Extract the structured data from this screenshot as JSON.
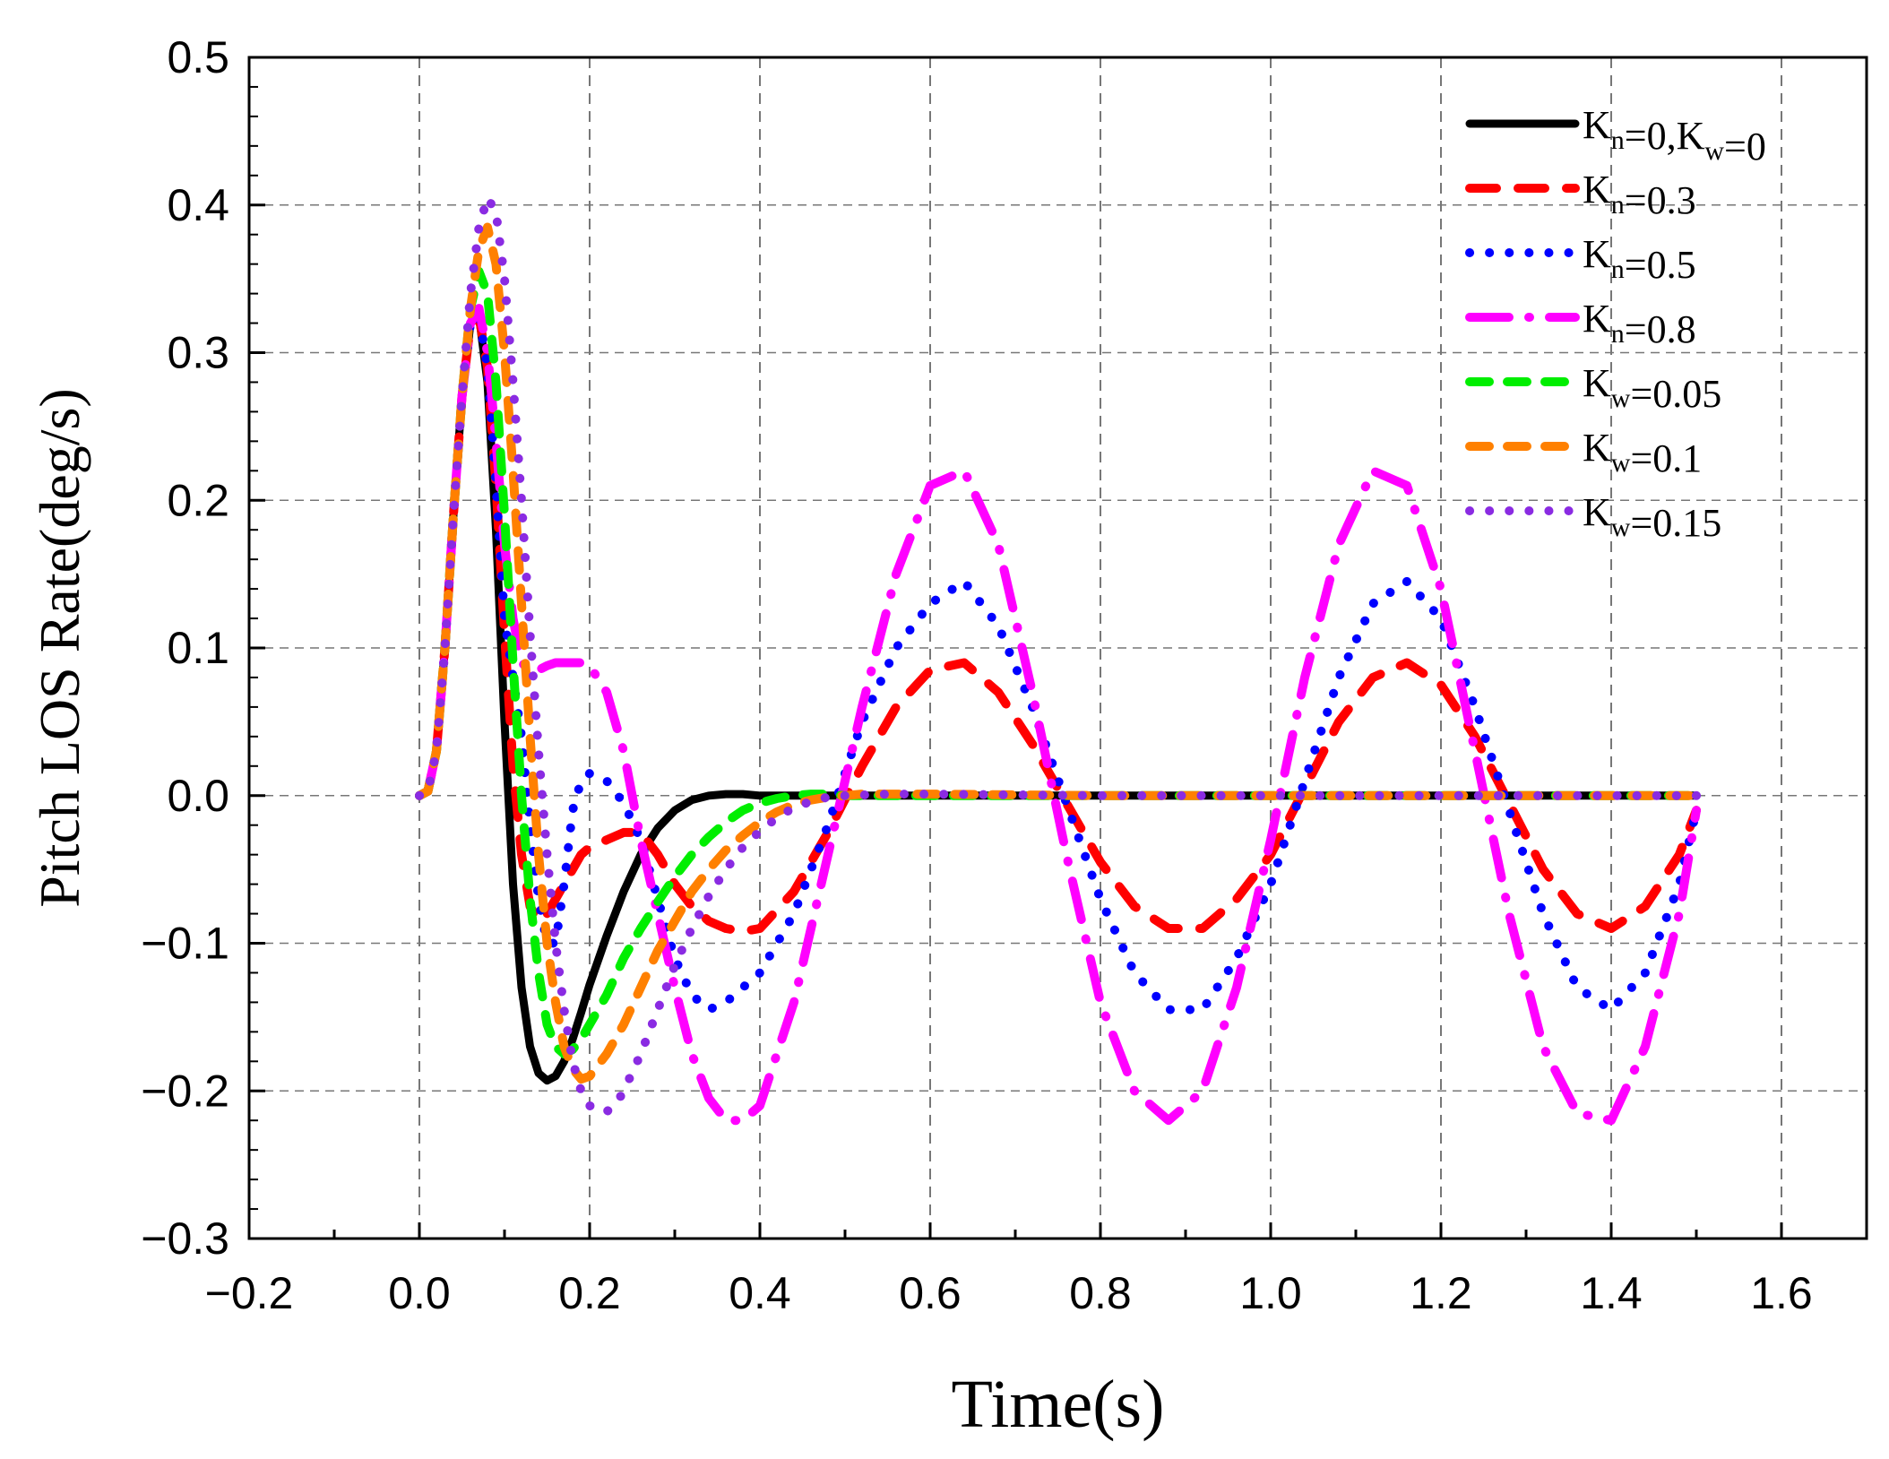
{
  "chart_data": {
    "type": "line",
    "title": "",
    "xlabel": "Time(s)",
    "ylabel": "Pitch LOS Rate(deg/s)",
    "xlim": [
      -0.2,
      1.7
    ],
    "ylim": [
      -0.3,
      0.5
    ],
    "grid": true,
    "legend_position": "top-right",
    "x_ticks": [
      -0.2,
      0.0,
      0.2,
      0.4,
      0.6,
      0.8,
      1.0,
      1.2,
      1.4,
      1.6
    ],
    "x_tick_labels": [
      "−0.2",
      "0.0",
      "0.2",
      "0.4",
      "0.6",
      "0.8",
      "1.0",
      "1.2",
      "1.4",
      "1.6"
    ],
    "y_ticks": [
      -0.3,
      -0.2,
      -0.1,
      0.0,
      0.1,
      0.2,
      0.3,
      0.4,
      0.5
    ],
    "y_tick_labels": [
      "−0.3",
      "−0.2",
      "−0.1",
      "0.0",
      "0.1",
      "0.2",
      "0.3",
      "0.4",
      "0.5"
    ],
    "series": [
      {
        "name": "Kn=0,Kw=0",
        "legend": [
          {
            "t": "K",
            "s": "n"
          },
          {
            "t": "=0,K",
            "s": "w"
          },
          {
            "t": "=0",
            "s": ""
          }
        ],
        "color": "#000000",
        "style": "solid",
        "x": [
          0,
          0.01,
          0.02,
          0.03,
          0.04,
          0.05,
          0.06,
          0.07,
          0.08,
          0.09,
          0.1,
          0.11,
          0.12,
          0.13,
          0.14,
          0.15,
          0.16,
          0.17,
          0.18,
          0.19,
          0.2,
          0.22,
          0.24,
          0.26,
          0.28,
          0.3,
          0.32,
          0.34,
          0.36,
          0.38,
          0.4,
          0.45,
          0.5,
          0.6,
          0.8,
          1.0,
          1.2,
          1.4,
          1.5
        ],
        "y": [
          0,
          0.003,
          0.03,
          0.1,
          0.19,
          0.27,
          0.32,
          0.325,
          0.28,
          0.18,
          0.05,
          -0.06,
          -0.13,
          -0.17,
          -0.188,
          -0.193,
          -0.19,
          -0.18,
          -0.165,
          -0.147,
          -0.128,
          -0.095,
          -0.065,
          -0.04,
          -0.022,
          -0.01,
          -0.003,
          0.0,
          0.001,
          0.001,
          0.0,
          0,
          0,
          0,
          0,
          0,
          0,
          0,
          0
        ]
      },
      {
        "name": "Kn=0.3",
        "legend": [
          {
            "t": "K",
            "s": "n"
          },
          {
            "t": "=0.3",
            "s": ""
          }
        ],
        "color": "#ff0000",
        "style": "dash",
        "x": [
          0,
          0.01,
          0.02,
          0.03,
          0.04,
          0.05,
          0.06,
          0.07,
          0.08,
          0.09,
          0.1,
          0.11,
          0.12,
          0.13,
          0.14,
          0.15,
          0.16,
          0.17,
          0.18,
          0.19,
          0.2,
          0.22,
          0.24,
          0.26,
          0.28,
          0.3,
          0.32,
          0.34,
          0.36,
          0.38,
          0.4,
          0.44,
          0.48,
          0.52,
          0.56,
          0.6,
          0.64,
          0.68,
          0.72,
          0.76,
          0.8,
          0.84,
          0.88,
          0.92,
          0.96,
          1.0,
          1.04,
          1.08,
          1.12,
          1.16,
          1.2,
          1.24,
          1.28,
          1.32,
          1.36,
          1.4,
          1.44,
          1.48,
          1.5
        ],
        "y": [
          0,
          0.003,
          0.03,
          0.1,
          0.19,
          0.27,
          0.32,
          0.325,
          0.29,
          0.21,
          0.11,
          0.02,
          -0.04,
          -0.075,
          -0.085,
          -0.08,
          -0.07,
          -0.06,
          -0.05,
          -0.04,
          -0.035,
          -0.03,
          -0.025,
          -0.025,
          -0.04,
          -0.06,
          -0.075,
          -0.085,
          -0.09,
          -0.092,
          -0.09,
          -0.065,
          -0.025,
          0.02,
          0.06,
          0.085,
          0.09,
          0.07,
          0.035,
          -0.005,
          -0.045,
          -0.075,
          -0.09,
          -0.09,
          -0.07,
          -0.04,
          0.005,
          0.05,
          0.08,
          0.09,
          0.075,
          0.04,
          -0.005,
          -0.05,
          -0.08,
          -0.09,
          -0.075,
          -0.04,
          -0.01
        ]
      },
      {
        "name": "Kn=0.5",
        "legend": [
          {
            "t": "K",
            "s": "n"
          },
          {
            "t": "=0.5",
            "s": ""
          }
        ],
        "color": "#0000ff",
        "style": "dot",
        "x": [
          0,
          0.01,
          0.02,
          0.03,
          0.04,
          0.05,
          0.06,
          0.07,
          0.08,
          0.09,
          0.1,
          0.11,
          0.12,
          0.13,
          0.14,
          0.15,
          0.16,
          0.17,
          0.18,
          0.19,
          0.2,
          0.22,
          0.24,
          0.26,
          0.28,
          0.3,
          0.32,
          0.34,
          0.36,
          0.38,
          0.4,
          0.44,
          0.48,
          0.52,
          0.56,
          0.6,
          0.64,
          0.68,
          0.72,
          0.76,
          0.8,
          0.84,
          0.88,
          0.92,
          0.96,
          1.0,
          1.04,
          1.08,
          1.12,
          1.16,
          1.2,
          1.24,
          1.28,
          1.32,
          1.36,
          1.4,
          1.44,
          1.48,
          1.5
        ],
        "y": [
          0,
          0.003,
          0.03,
          0.1,
          0.19,
          0.27,
          0.32,
          0.325,
          0.29,
          0.21,
          0.12,
          0.08,
          0.04,
          -0.02,
          -0.07,
          -0.1,
          -0.1,
          -0.06,
          -0.01,
          0.01,
          0.015,
          0.01,
          -0.005,
          -0.03,
          -0.07,
          -0.11,
          -0.135,
          -0.145,
          -0.14,
          -0.13,
          -0.12,
          -0.08,
          -0.02,
          0.05,
          0.1,
          0.13,
          0.145,
          0.115,
          0.06,
          -0.005,
          -0.07,
          -0.12,
          -0.145,
          -0.145,
          -0.11,
          -0.06,
          0.01,
          0.08,
          0.13,
          0.145,
          0.12,
          0.06,
          -0.01,
          -0.08,
          -0.13,
          -0.145,
          -0.12,
          -0.06,
          -0.01
        ]
      },
      {
        "name": "Kn=0.8",
        "legend": [
          {
            "t": "K",
            "s": "n"
          },
          {
            "t": "=0.8",
            "s": ""
          }
        ],
        "color": "#ff00ff",
        "style": "dashdot",
        "x": [
          0,
          0.01,
          0.02,
          0.03,
          0.04,
          0.05,
          0.06,
          0.07,
          0.08,
          0.09,
          0.1,
          0.11,
          0.12,
          0.13,
          0.14,
          0.15,
          0.16,
          0.17,
          0.18,
          0.19,
          0.2,
          0.22,
          0.24,
          0.26,
          0.28,
          0.3,
          0.32,
          0.34,
          0.36,
          0.38,
          0.4,
          0.44,
          0.48,
          0.52,
          0.56,
          0.6,
          0.64,
          0.68,
          0.72,
          0.76,
          0.8,
          0.84,
          0.88,
          0.92,
          0.96,
          1.0,
          1.04,
          1.08,
          1.12,
          1.16,
          1.2,
          1.24,
          1.28,
          1.32,
          1.36,
          1.4,
          1.44,
          1.48,
          1.5
        ],
        "y": [
          0,
          0.003,
          0.03,
          0.1,
          0.19,
          0.27,
          0.32,
          0.33,
          0.3,
          0.24,
          0.17,
          0.12,
          0.09,
          0.085,
          0.085,
          0.088,
          0.09,
          0.09,
          0.09,
          0.09,
          0.088,
          0.07,
          0.03,
          -0.03,
          -0.08,
          -0.13,
          -0.175,
          -0.205,
          -0.22,
          -0.22,
          -0.21,
          -0.14,
          -0.04,
          0.06,
          0.15,
          0.21,
          0.22,
          0.17,
          0.07,
          -0.04,
          -0.14,
          -0.2,
          -0.22,
          -0.2,
          -0.13,
          -0.03,
          0.08,
          0.17,
          0.22,
          0.21,
          0.14,
          0.03,
          -0.08,
          -0.17,
          -0.215,
          -0.22,
          -0.17,
          -0.08,
          -0.01
        ]
      },
      {
        "name": "Kw=0.05",
        "legend": [
          {
            "t": "K",
            "s": "w"
          },
          {
            "t": "=0.05",
            "s": ""
          }
        ],
        "color": "#00ee00",
        "style": "dash-short",
        "x": [
          0,
          0.01,
          0.02,
          0.03,
          0.04,
          0.05,
          0.06,
          0.07,
          0.08,
          0.09,
          0.1,
          0.11,
          0.12,
          0.13,
          0.14,
          0.15,
          0.16,
          0.17,
          0.18,
          0.19,
          0.2,
          0.22,
          0.24,
          0.26,
          0.28,
          0.3,
          0.32,
          0.34,
          0.36,
          0.38,
          0.4,
          0.42,
          0.44,
          0.46,
          0.48,
          0.5,
          0.6,
          0.8,
          1.0,
          1.2,
          1.4,
          1.5
        ],
        "y": [
          0,
          0.003,
          0.03,
          0.1,
          0.19,
          0.27,
          0.33,
          0.355,
          0.34,
          0.28,
          0.19,
          0.09,
          0.0,
          -0.07,
          -0.12,
          -0.155,
          -0.17,
          -0.175,
          -0.172,
          -0.165,
          -0.155,
          -0.135,
          -0.11,
          -0.09,
          -0.072,
          -0.055,
          -0.04,
          -0.028,
          -0.018,
          -0.01,
          -0.005,
          -0.002,
          0.0,
          0.001,
          0.001,
          0.0,
          0,
          0,
          0,
          0,
          0,
          0
        ]
      },
      {
        "name": "Kw=0.1",
        "legend": [
          {
            "t": "K",
            "s": "w"
          },
          {
            "t": "=0.1",
            "s": ""
          }
        ],
        "color": "#ff8000",
        "style": "dash-short",
        "x": [
          0,
          0.01,
          0.02,
          0.03,
          0.04,
          0.05,
          0.06,
          0.07,
          0.08,
          0.09,
          0.1,
          0.11,
          0.12,
          0.13,
          0.14,
          0.15,
          0.16,
          0.17,
          0.18,
          0.19,
          0.2,
          0.22,
          0.24,
          0.26,
          0.28,
          0.3,
          0.32,
          0.34,
          0.36,
          0.38,
          0.4,
          0.42,
          0.44,
          0.46,
          0.48,
          0.5,
          0.52,
          0.6,
          0.8,
          1.0,
          1.2,
          1.4,
          1.5
        ],
        "y": [
          0,
          0.003,
          0.03,
          0.1,
          0.19,
          0.27,
          0.33,
          0.37,
          0.385,
          0.36,
          0.3,
          0.22,
          0.13,
          0.04,
          -0.04,
          -0.1,
          -0.14,
          -0.17,
          -0.185,
          -0.192,
          -0.19,
          -0.175,
          -0.155,
          -0.13,
          -0.105,
          -0.085,
          -0.065,
          -0.05,
          -0.037,
          -0.027,
          -0.018,
          -0.011,
          -0.006,
          -0.003,
          -0.001,
          0.0,
          0.001,
          0.001,
          0,
          0,
          0,
          0,
          0
        ]
      },
      {
        "name": "Kw=0.15",
        "legend": [
          {
            "t": "K",
            "s": "w"
          },
          {
            "t": "=0.15",
            "s": ""
          }
        ],
        "color": "#8a2be2",
        "style": "dot",
        "x": [
          0,
          0.01,
          0.02,
          0.03,
          0.04,
          0.05,
          0.06,
          0.07,
          0.08,
          0.09,
          0.1,
          0.11,
          0.12,
          0.13,
          0.14,
          0.15,
          0.16,
          0.17,
          0.18,
          0.19,
          0.2,
          0.21,
          0.22,
          0.23,
          0.24,
          0.26,
          0.28,
          0.3,
          0.32,
          0.34,
          0.36,
          0.38,
          0.4,
          0.42,
          0.44,
          0.46,
          0.48,
          0.5,
          0.55,
          0.6,
          0.8,
          1.0,
          1.2,
          1.4,
          1.5
        ],
        "y": [
          0,
          0.003,
          0.03,
          0.1,
          0.19,
          0.27,
          0.34,
          0.385,
          0.405,
          0.395,
          0.35,
          0.28,
          0.2,
          0.11,
          0.03,
          -0.04,
          -0.1,
          -0.145,
          -0.18,
          -0.2,
          -0.21,
          -0.214,
          -0.214,
          -0.21,
          -0.2,
          -0.175,
          -0.145,
          -0.115,
          -0.09,
          -0.068,
          -0.05,
          -0.035,
          -0.024,
          -0.015,
          -0.008,
          -0.004,
          -0.001,
          0.0,
          0.001,
          0.001,
          0,
          0,
          0,
          0,
          0
        ]
      }
    ]
  }
}
